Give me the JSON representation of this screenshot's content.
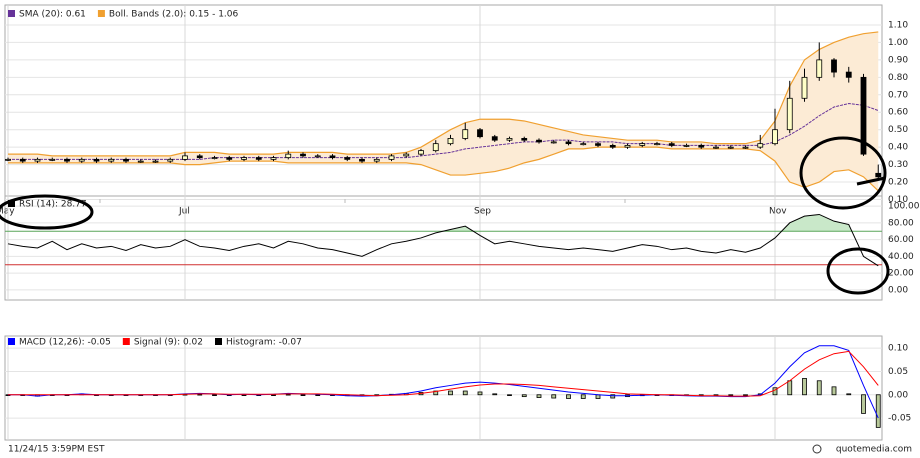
{
  "chart_data": [
    {
      "type": "candlestick",
      "categories": [
        "May",
        null,
        null,
        null,
        null,
        null,
        null,
        null,
        null,
        null,
        null,
        null,
        "Jul",
        null,
        null,
        null,
        null,
        null,
        null,
        null,
        null,
        null,
        null,
        null,
        null,
        null,
        null,
        null,
        null,
        null,
        null,
        null,
        "Sep",
        null,
        null,
        null,
        null,
        null,
        null,
        null,
        null,
        null,
        null,
        null,
        null,
        null,
        null,
        null,
        null,
        null,
        null,
        null,
        "Nov",
        null,
        null,
        null,
        null,
        null,
        null,
        null
      ],
      "open": [
        0.33,
        0.33,
        0.32,
        0.33,
        0.33,
        0.32,
        0.33,
        0.32,
        0.33,
        0.32,
        0.32,
        0.32,
        0.33,
        0.35,
        0.34,
        0.34,
        0.33,
        0.34,
        0.33,
        0.34,
        0.36,
        0.35,
        0.35,
        0.34,
        0.33,
        0.32,
        0.33,
        0.35,
        0.36,
        0.38,
        0.42,
        0.45,
        0.5,
        0.46,
        0.44,
        0.45,
        0.44,
        0.43,
        0.43,
        0.42,
        0.42,
        0.41,
        0.4,
        0.41,
        0.42,
        0.42,
        0.41,
        0.41,
        0.4,
        0.4,
        0.4,
        0.4,
        0.42,
        0.5,
        0.68,
        0.8,
        0.9,
        0.83,
        0.8,
        0.25
      ],
      "high": [
        0.34,
        0.34,
        0.34,
        0.34,
        0.34,
        0.34,
        0.34,
        0.34,
        0.34,
        0.33,
        0.33,
        0.34,
        0.37,
        0.36,
        0.35,
        0.35,
        0.35,
        0.35,
        0.35,
        0.38,
        0.37,
        0.36,
        0.36,
        0.35,
        0.34,
        0.34,
        0.36,
        0.37,
        0.39,
        0.44,
        0.47,
        0.54,
        0.51,
        0.47,
        0.46,
        0.46,
        0.45,
        0.44,
        0.44,
        0.43,
        0.43,
        0.42,
        0.42,
        0.43,
        0.43,
        0.43,
        0.42,
        0.42,
        0.41,
        0.41,
        0.41,
        0.47,
        0.62,
        0.78,
        0.85,
        1.0,
        0.91,
        0.86,
        0.82,
        0.3
      ],
      "low": [
        0.32,
        0.31,
        0.31,
        0.32,
        0.31,
        0.31,
        0.31,
        0.31,
        0.31,
        0.31,
        0.31,
        0.31,
        0.32,
        0.33,
        0.33,
        0.32,
        0.32,
        0.32,
        0.32,
        0.33,
        0.34,
        0.34,
        0.33,
        0.32,
        0.31,
        0.31,
        0.32,
        0.34,
        0.35,
        0.37,
        0.41,
        0.44,
        0.45,
        0.43,
        0.43,
        0.43,
        0.42,
        0.42,
        0.41,
        0.41,
        0.4,
        0.39,
        0.39,
        0.4,
        0.41,
        0.4,
        0.4,
        0.39,
        0.39,
        0.39,
        0.39,
        0.39,
        0.41,
        0.48,
        0.66,
        0.78,
        0.8,
        0.77,
        0.35,
        0.22
      ],
      "close": [
        0.33,
        0.32,
        0.33,
        0.33,
        0.32,
        0.33,
        0.32,
        0.33,
        0.32,
        0.32,
        0.32,
        0.33,
        0.35,
        0.34,
        0.34,
        0.33,
        0.34,
        0.33,
        0.34,
        0.36,
        0.35,
        0.35,
        0.34,
        0.33,
        0.32,
        0.33,
        0.35,
        0.36,
        0.38,
        0.42,
        0.45,
        0.5,
        0.46,
        0.44,
        0.45,
        0.44,
        0.43,
        0.43,
        0.42,
        0.42,
        0.41,
        0.4,
        0.41,
        0.42,
        0.42,
        0.41,
        0.41,
        0.4,
        0.4,
        0.4,
        0.4,
        0.42,
        0.5,
        0.68,
        0.8,
        0.9,
        0.83,
        0.8,
        0.36,
        0.23
      ],
      "up_color": "#ffffc8",
      "down_color": "#000000",
      "series": [
        {
          "name": "SMA (20): 0.61",
          "color": "#663399",
          "values": [
            0.33,
            0.33,
            0.33,
            0.33,
            0.33,
            0.33,
            0.33,
            0.33,
            0.33,
            0.33,
            0.33,
            0.33,
            0.33,
            0.33,
            0.34,
            0.34,
            0.34,
            0.34,
            0.34,
            0.34,
            0.34,
            0.34,
            0.34,
            0.34,
            0.34,
            0.34,
            0.34,
            0.34,
            0.35,
            0.36,
            0.37,
            0.39,
            0.4,
            0.41,
            0.42,
            0.43,
            0.43,
            0.44,
            0.44,
            0.43,
            0.43,
            0.43,
            0.42,
            0.42,
            0.42,
            0.41,
            0.41,
            0.41,
            0.41,
            0.41,
            0.41,
            0.41,
            0.43,
            0.47,
            0.52,
            0.58,
            0.63,
            0.65,
            0.64,
            0.61
          ]
        },
        {
          "name": "Boll. Bands (2.0): 0.15 - 1.06",
          "color": "#f0a030",
          "fill": "#fcebd5",
          "upper": [
            0.36,
            0.36,
            0.36,
            0.35,
            0.35,
            0.35,
            0.35,
            0.35,
            0.35,
            0.35,
            0.35,
            0.35,
            0.37,
            0.37,
            0.37,
            0.36,
            0.36,
            0.36,
            0.36,
            0.37,
            0.37,
            0.37,
            0.37,
            0.36,
            0.36,
            0.36,
            0.36,
            0.37,
            0.4,
            0.45,
            0.5,
            0.54,
            0.56,
            0.56,
            0.56,
            0.55,
            0.53,
            0.51,
            0.49,
            0.47,
            0.46,
            0.45,
            0.44,
            0.44,
            0.44,
            0.43,
            0.43,
            0.43,
            0.42,
            0.42,
            0.42,
            0.44,
            0.55,
            0.75,
            0.9,
            0.96,
            1.0,
            1.03,
            1.05,
            1.06
          ],
          "lower": [
            0.31,
            0.31,
            0.31,
            0.31,
            0.31,
            0.31,
            0.31,
            0.31,
            0.31,
            0.31,
            0.31,
            0.31,
            0.3,
            0.3,
            0.31,
            0.32,
            0.32,
            0.32,
            0.32,
            0.31,
            0.31,
            0.31,
            0.31,
            0.31,
            0.31,
            0.31,
            0.31,
            0.31,
            0.3,
            0.27,
            0.24,
            0.24,
            0.25,
            0.26,
            0.28,
            0.31,
            0.33,
            0.36,
            0.39,
            0.39,
            0.4,
            0.4,
            0.4,
            0.4,
            0.4,
            0.39,
            0.39,
            0.39,
            0.39,
            0.39,
            0.39,
            0.38,
            0.32,
            0.2,
            0.17,
            0.2,
            0.26,
            0.27,
            0.23,
            0.15
          ]
        }
      ],
      "ylim": [
        0.08,
        1.14
      ],
      "yticks": [
        {
          "value": 0.1,
          "label": "0.10"
        },
        {
          "value": 0.2,
          "label": "0.20"
        },
        {
          "value": 0.3,
          "label": "0.30"
        },
        {
          "value": 0.4,
          "label": "0.40"
        },
        {
          "value": 0.5,
          "label": "0.50"
        },
        {
          "value": 0.6,
          "label": "0.60"
        },
        {
          "value": 0.7,
          "label": "0.70"
        },
        {
          "value": 0.8,
          "label": "0.80"
        },
        {
          "value": 0.9,
          "label": "0.90"
        },
        {
          "value": 1.0,
          "label": "1.00"
        },
        {
          "value": 1.1,
          "label": "1.10"
        }
      ],
      "grid": true
    },
    {
      "type": "line",
      "series": [
        {
          "name": "RSI (14): 28.77",
          "color": "#000000",
          "values": [
            55,
            52,
            50,
            58,
            48,
            55,
            50,
            52,
            47,
            54,
            50,
            52,
            60,
            52,
            50,
            47,
            52,
            55,
            50,
            58,
            55,
            50,
            48,
            44,
            40,
            48,
            55,
            58,
            62,
            68,
            72,
            76,
            65,
            55,
            58,
            55,
            52,
            50,
            48,
            50,
            48,
            46,
            50,
            54,
            52,
            48,
            50,
            46,
            44,
            48,
            45,
            50,
            62,
            80,
            88,
            90,
            82,
            78,
            40,
            28.77
          ]
        }
      ],
      "reference_lines": [
        {
          "value": 70,
          "color": "#5aa55a",
          "fill": "#c9e8c9"
        },
        {
          "value": 30,
          "color": "#d03030"
        }
      ],
      "ylim": [
        -12,
        112
      ],
      "yticks": [
        {
          "value": 0,
          "label": "0.00"
        },
        {
          "value": 20,
          "label": "20.00"
        },
        {
          "value": 40,
          "label": "40.00"
        },
        {
          "value": 60,
          "label": "60.00"
        },
        {
          "value": 80,
          "label": "80.00"
        },
        {
          "value": 100,
          "label": "100.00"
        }
      ],
      "grid": true
    },
    {
      "type": "line",
      "series": [
        {
          "name": "MACD (12,26): -0.05",
          "color": "#0000ff",
          "values": [
            0,
            0,
            -0.003,
            0,
            0,
            0.002,
            0,
            0,
            0,
            0,
            0,
            0,
            0.002,
            0.003,
            0.002,
            0,
            0.001,
            0,
            0.001,
            0.003,
            0.002,
            0.001,
            0,
            -0.002,
            -0.003,
            -0.002,
            0,
            0.003,
            0.008,
            0.015,
            0.02,
            0.025,
            0.027,
            0.025,
            0.022,
            0.018,
            0.014,
            0.01,
            0.006,
            0.003,
            0,
            -0.002,
            -0.002,
            -0.001,
            0,
            -0.001,
            -0.002,
            -0.003,
            -0.003,
            -0.004,
            -0.004,
            0,
            0.025,
            0.06,
            0.09,
            0.105,
            0.105,
            0.095,
            0.02,
            -0.05
          ]
        },
        {
          "name": "Signal (9): 0.02",
          "color": "#ff0000",
          "values": [
            0,
            0,
            0,
            0,
            0,
            0,
            0,
            0,
            0,
            0,
            0,
            0,
            0.001,
            0.002,
            0.002,
            0.001,
            0.001,
            0.001,
            0.001,
            0.002,
            0.002,
            0.002,
            0.001,
            0,
            -0.001,
            -0.002,
            -0.001,
            0,
            0.003,
            0.007,
            0.012,
            0.017,
            0.021,
            0.023,
            0.023,
            0.022,
            0.02,
            0.017,
            0.014,
            0.011,
            0.008,
            0.005,
            0.002,
            0.001,
            0,
            0,
            -0.001,
            -0.002,
            -0.002,
            -0.003,
            -0.003,
            -0.002,
            0.01,
            0.03,
            0.055,
            0.075,
            0.088,
            0.093,
            0.06,
            0.02
          ]
        },
        {
          "name": "Histogram: -0.07",
          "type": "bar",
          "color": "#000000",
          "fill": "#b8c99a",
          "values": [
            0,
            0,
            -0.003,
            0,
            0,
            0.002,
            0,
            0,
            0,
            0,
            0,
            0,
            0.001,
            0.001,
            0,
            -0.001,
            0,
            -0.001,
            0,
            0.001,
            0,
            -0.001,
            -0.001,
            -0.002,
            -0.002,
            0,
            0.001,
            0.003,
            0.005,
            0.008,
            0.008,
            0.008,
            0.006,
            0.002,
            -0.001,
            -0.004,
            -0.006,
            -0.007,
            -0.008,
            -0.008,
            -0.008,
            -0.007,
            -0.004,
            -0.002,
            0,
            -0.001,
            -0.001,
            -0.001,
            -0.001,
            -0.001,
            -0.001,
            0.002,
            0.015,
            0.03,
            0.035,
            0.03,
            0.017,
            0.002,
            -0.04,
            -0.07
          ]
        }
      ],
      "ylim": [
        -0.097,
        0.126
      ],
      "yticks": [
        {
          "value": -0.05,
          "label": "-0.05"
        },
        {
          "value": 0,
          "label": "0.00"
        },
        {
          "value": 0.05,
          "label": "0.05"
        },
        {
          "value": 0.1,
          "label": "0.10"
        }
      ],
      "grid": true
    }
  ],
  "footer": {
    "timestamp": "11/24/15 3:59PM EST",
    "source": "quotemedia.com"
  }
}
